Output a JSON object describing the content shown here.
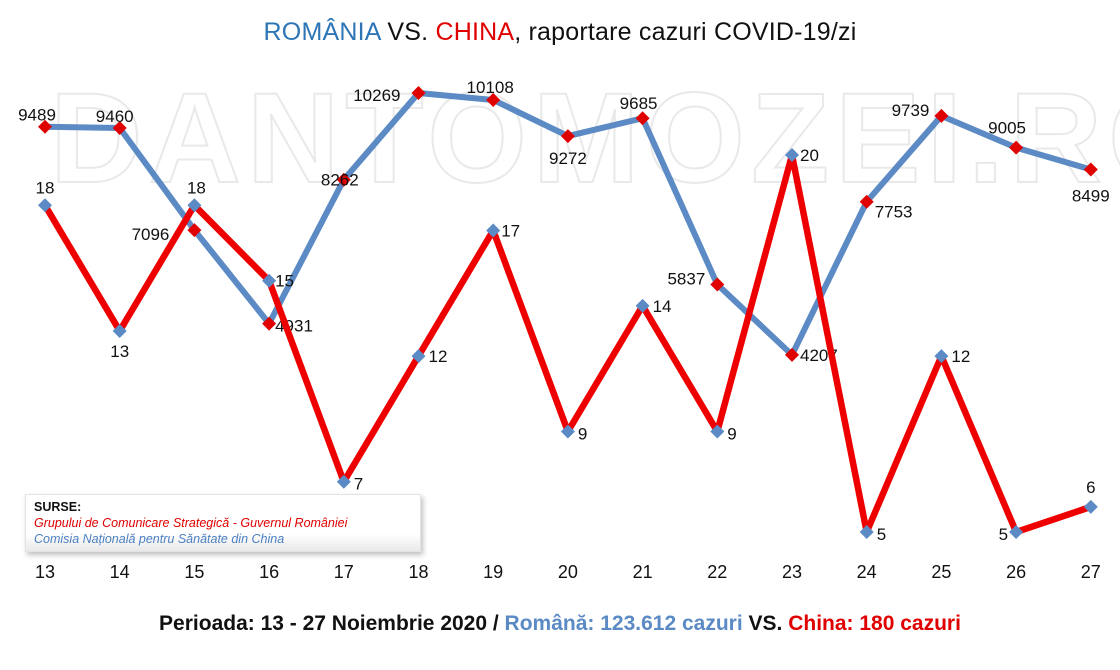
{
  "title": {
    "part_romania": "ROMÂNIA",
    "part_vs": " VS. ",
    "part_china": "CHINA",
    "part_rest": ", raportare cazuri COVID-19/zi"
  },
  "watermark": "DANTOMOZEI.RO",
  "legend": {
    "heading": "SURSE:",
    "source_romania": "Grupului de Comunicare Strategică - Guvernul României",
    "source_china": "Comisia Națională pentru Sănătate din China"
  },
  "footer": {
    "period": "Perioada: 13 - 27 Noiembrie 2020 / ",
    "romania": "Română: 123.612 cazuri",
    "vs": " VS. ",
    "china": "China: 180 cazuri"
  },
  "colors": {
    "romania_line": "#5b8ac4",
    "romania_marker": "#e00000",
    "china_line": "#ee0000",
    "china_marker": "#5b8ac4",
    "title_romania": "#2e75b6",
    "title_china": "#e00000"
  },
  "chart_data": {
    "type": "line",
    "title": "ROMÂNIA VS. CHINA, raportare cazuri COVID-19/zi",
    "xlabel": "Perioada: 13 - 27 Noiembrie 2020",
    "ylabel": "",
    "categories": [
      "13",
      "14",
      "15",
      "16",
      "17",
      "18",
      "19",
      "20",
      "21",
      "22",
      "23",
      "24",
      "25",
      "26",
      "27"
    ],
    "series": [
      {
        "name": "România",
        "values": [
          9489,
          9460,
          7096,
          4931,
          8262,
          10269,
          10108,
          9272,
          9685,
          5837,
          4207,
          7753,
          9739,
          9005,
          8499
        ],
        "total_label": "123.612 cazuri"
      },
      {
        "name": "China",
        "values": [
          18,
          13,
          18,
          15,
          7,
          12,
          17,
          9,
          14,
          9,
          20,
          5,
          12,
          5,
          6
        ],
        "total_label": "180 cazuri"
      }
    ],
    "axes": "dual (independent scales, no visible y-axis)",
    "grid": false,
    "legend_position": "bottom-left (sources box)",
    "data_labels": true
  }
}
